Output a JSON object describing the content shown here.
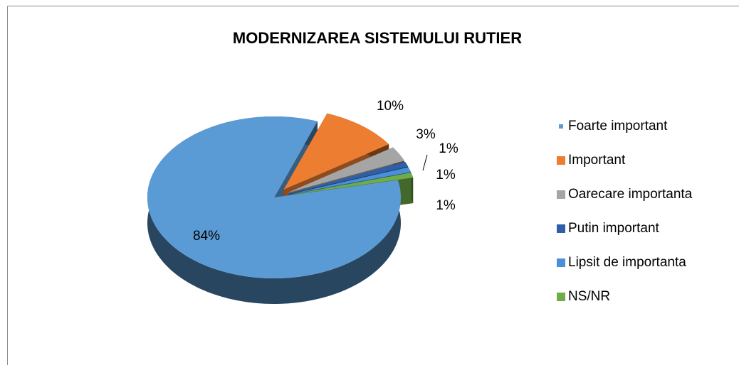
{
  "chart_data": {
    "type": "pie",
    "title": "MODERNIZAREA SISTEMULUI RUTIER",
    "categories": [
      "Foarte important",
      "Important",
      "Oarecare importanta",
      "Putin important",
      "Lipsit de importanta",
      "NS/NR"
    ],
    "values": [
      84,
      10,
      3,
      1,
      1,
      1
    ],
    "value_labels": [
      "84%",
      "10%",
      "3%",
      "1%",
      "1%",
      "1%"
    ],
    "colors": [
      "#5b9bd5",
      "#ed7d31",
      "#a5a5a5",
      "#2e5fa8",
      "#4a90d9",
      "#70ad47"
    ],
    "legend": "right"
  }
}
